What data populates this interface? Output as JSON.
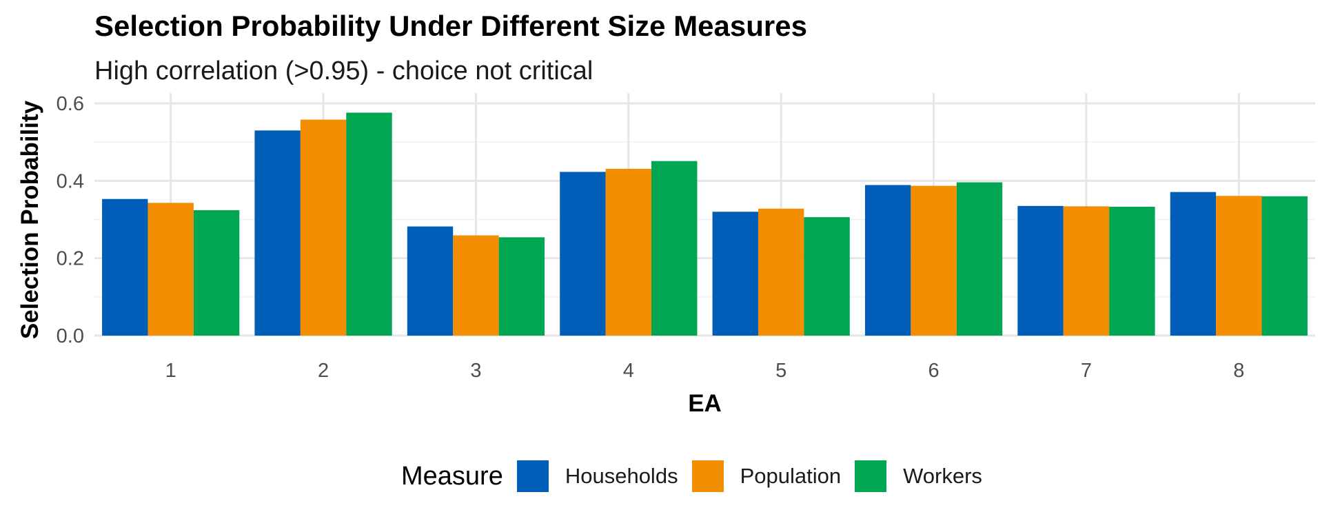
{
  "chart_data": {
    "type": "bar",
    "title": "Selection Probability Under Different Size Measures",
    "subtitle": "High correlation (>0.95) - choice not critical",
    "xlabel": "EA",
    "ylabel": "Selection Probability",
    "categories": [
      "1",
      "2",
      "3",
      "4",
      "5",
      "6",
      "7",
      "8"
    ],
    "series": [
      {
        "name": "Households",
        "color": "#005EB8",
        "values": [
          0.353,
          0.53,
          0.282,
          0.423,
          0.32,
          0.389,
          0.335,
          0.371
        ]
      },
      {
        "name": "Population",
        "color": "#F28E00",
        "values": [
          0.343,
          0.558,
          0.259,
          0.431,
          0.328,
          0.387,
          0.334,
          0.361
        ]
      },
      {
        "name": "Workers",
        "color": "#00A651",
        "values": [
          0.324,
          0.576,
          0.254,
          0.451,
          0.306,
          0.396,
          0.333,
          0.36
        ]
      }
    ],
    "ylim": [
      0,
      0.6
    ],
    "yticks": [
      0.0,
      0.2,
      0.4,
      0.6
    ],
    "ytick_labels": [
      "0.0",
      "0.2",
      "0.4",
      "0.6"
    ],
    "grid": true,
    "legend_title": "Measure",
    "legend_position": "bottom"
  }
}
